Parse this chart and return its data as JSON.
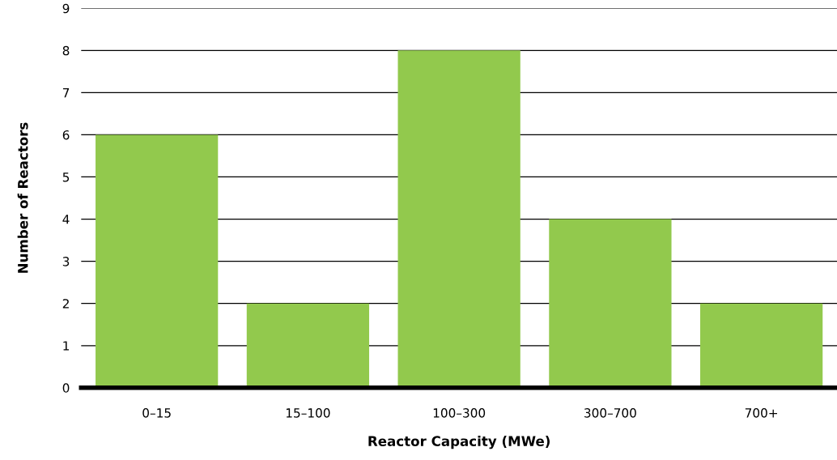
{
  "chart_data": {
    "type": "bar",
    "xlabel": "Reactor Capacity (MWe)",
    "ylabel": "Number of Reactors",
    "categories": [
      "0–15",
      "15–100",
      "100–300",
      "300–700",
      "700+"
    ],
    "values": [
      6,
      2,
      8,
      4,
      2
    ],
    "color": "#92c94d",
    "ylim": [
      0,
      9
    ],
    "yticks": [
      0,
      1,
      2,
      3,
      4,
      5,
      6,
      7,
      8,
      9
    ],
    "grid": "y"
  }
}
